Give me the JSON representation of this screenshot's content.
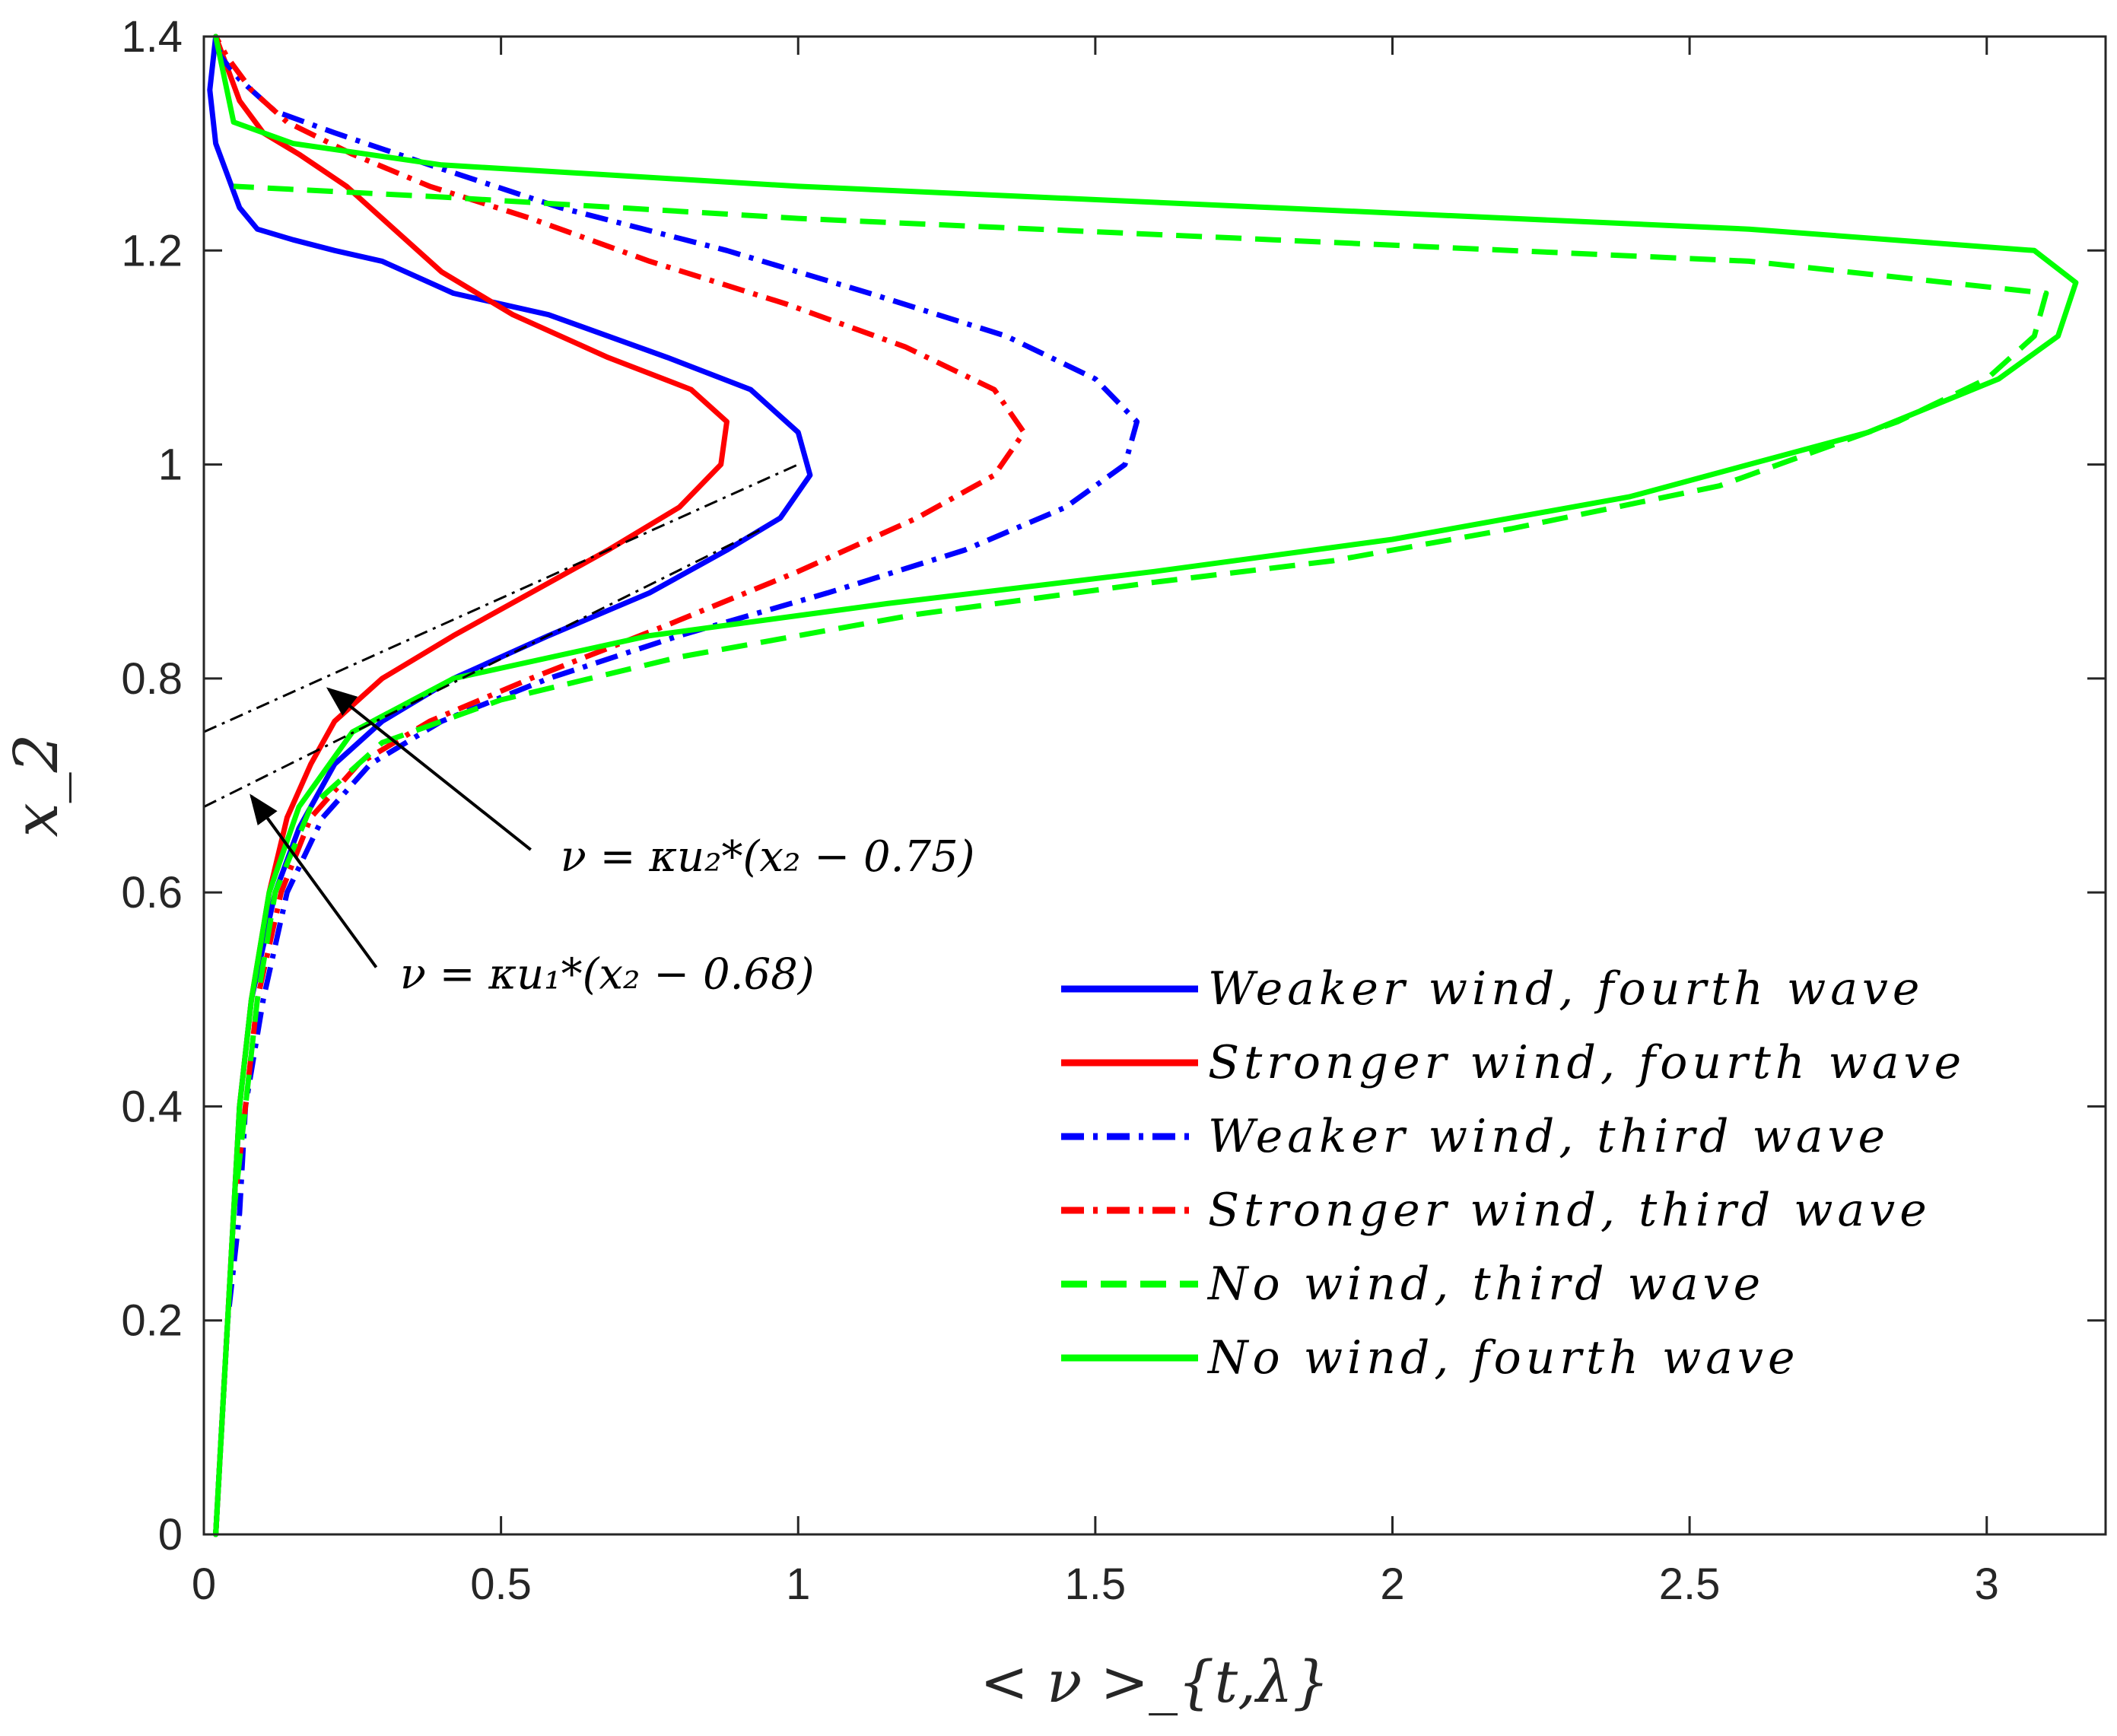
{
  "chart_data": {
    "type": "line",
    "title": "",
    "xlabel": "< ν >_{t,λ}",
    "ylabel": "x_2",
    "xlim": [
      0,
      3.2
    ],
    "ylim": [
      0,
      1.4
    ],
    "xticks": [
      0,
      0.5,
      1,
      1.5,
      2,
      2.5,
      3
    ],
    "xtick_labels": [
      "0",
      "0.5",
      "1",
      "1.5",
      "2",
      "2.5",
      "3"
    ],
    "yticks": [
      0,
      0.2,
      0.4,
      0.6,
      0.8,
      1,
      1.2,
      1.4
    ],
    "ytick_labels": [
      "0",
      "0.2",
      "0.4",
      "0.6",
      "0.8",
      "1",
      "1.2",
      "1.4"
    ],
    "grid": false,
    "legend_position": "bottom-right",
    "series": [
      {
        "name": "Weaker wind, fourth wave",
        "legend_text": "Weaker wind, fourth wave",
        "color": "#0000ff",
        "dash": "solid",
        "points": [
          [
            0.02,
            0.0
          ],
          [
            0.03,
            0.1
          ],
          [
            0.04,
            0.2
          ],
          [
            0.05,
            0.3
          ],
          [
            0.06,
            0.4
          ],
          [
            0.08,
            0.5
          ],
          [
            0.12,
            0.6
          ],
          [
            0.16,
            0.66
          ],
          [
            0.22,
            0.72
          ],
          [
            0.3,
            0.76
          ],
          [
            0.42,
            0.8
          ],
          [
            0.58,
            0.84
          ],
          [
            0.75,
            0.88
          ],
          [
            0.88,
            0.92
          ],
          [
            0.97,
            0.95
          ],
          [
            1.02,
            0.99
          ],
          [
            1.0,
            1.03
          ],
          [
            0.92,
            1.07
          ],
          [
            0.78,
            1.1
          ],
          [
            0.58,
            1.14
          ],
          [
            0.42,
            1.16
          ],
          [
            0.3,
            1.19
          ],
          [
            0.22,
            1.2
          ],
          [
            0.15,
            1.21
          ],
          [
            0.09,
            1.22
          ],
          [
            0.06,
            1.24
          ],
          [
            0.04,
            1.27
          ],
          [
            0.02,
            1.3
          ],
          [
            0.01,
            1.35
          ],
          [
            0.02,
            1.4
          ]
        ]
      },
      {
        "name": "Stronger wind, fourth wave",
        "legend_text": "Stronger wind, fourth wave",
        "color": "#ff0000",
        "dash": "solid",
        "points": [
          [
            0.02,
            0.0
          ],
          [
            0.03,
            0.1
          ],
          [
            0.04,
            0.2
          ],
          [
            0.05,
            0.3
          ],
          [
            0.06,
            0.4
          ],
          [
            0.08,
            0.5
          ],
          [
            0.11,
            0.6
          ],
          [
            0.14,
            0.67
          ],
          [
            0.18,
            0.72
          ],
          [
            0.22,
            0.76
          ],
          [
            0.3,
            0.8
          ],
          [
            0.42,
            0.84
          ],
          [
            0.55,
            0.88
          ],
          [
            0.68,
            0.92
          ],
          [
            0.8,
            0.96
          ],
          [
            0.87,
            1.0
          ],
          [
            0.88,
            1.04
          ],
          [
            0.82,
            1.07
          ],
          [
            0.68,
            1.1
          ],
          [
            0.52,
            1.14
          ],
          [
            0.4,
            1.18
          ],
          [
            0.32,
            1.22
          ],
          [
            0.24,
            1.26
          ],
          [
            0.16,
            1.29
          ],
          [
            0.1,
            1.31
          ],
          [
            0.06,
            1.34
          ],
          [
            0.04,
            1.37
          ],
          [
            0.02,
            1.4
          ]
        ]
      },
      {
        "name": "Weaker wind, third wave",
        "legend_text": "Weaker wind, third wave",
        "color": "#0000ff",
        "dash": "dashdot",
        "points": [
          [
            0.02,
            0.0
          ],
          [
            0.03,
            0.1
          ],
          [
            0.04,
            0.2
          ],
          [
            0.06,
            0.3
          ],
          [
            0.07,
            0.4
          ],
          [
            0.1,
            0.5
          ],
          [
            0.14,
            0.6
          ],
          [
            0.2,
            0.67
          ],
          [
            0.28,
            0.72
          ],
          [
            0.4,
            0.76
          ],
          [
            0.58,
            0.8
          ],
          [
            0.8,
            0.84
          ],
          [
            1.05,
            0.88
          ],
          [
            1.28,
            0.92
          ],
          [
            1.45,
            0.96
          ],
          [
            1.55,
            1.0
          ],
          [
            1.57,
            1.04
          ],
          [
            1.5,
            1.08
          ],
          [
            1.35,
            1.12
          ],
          [
            1.12,
            1.16
          ],
          [
            0.88,
            1.2
          ],
          [
            0.6,
            1.24
          ],
          [
            0.38,
            1.28
          ],
          [
            0.22,
            1.31
          ],
          [
            0.12,
            1.33
          ],
          [
            0.06,
            1.36
          ],
          [
            0.03,
            1.38
          ],
          [
            0.02,
            1.4
          ]
        ]
      },
      {
        "name": "Stronger wind, third wave",
        "legend_text": "Stronger wind, third wave",
        "color": "#ff0000",
        "dash": "dashdot",
        "points": [
          [
            0.02,
            0.0
          ],
          [
            0.03,
            0.1
          ],
          [
            0.04,
            0.2
          ],
          [
            0.05,
            0.3
          ],
          [
            0.07,
            0.4
          ],
          [
            0.09,
            0.5
          ],
          [
            0.13,
            0.6
          ],
          [
            0.18,
            0.67
          ],
          [
            0.26,
            0.72
          ],
          [
            0.38,
            0.76
          ],
          [
            0.55,
            0.8
          ],
          [
            0.78,
            0.85
          ],
          [
            1.0,
            0.9
          ],
          [
            1.2,
            0.95
          ],
          [
            1.33,
            0.99
          ],
          [
            1.38,
            1.03
          ],
          [
            1.33,
            1.07
          ],
          [
            1.18,
            1.11
          ],
          [
            0.98,
            1.15
          ],
          [
            0.75,
            1.19
          ],
          [
            0.55,
            1.23
          ],
          [
            0.38,
            1.26
          ],
          [
            0.25,
            1.29
          ],
          [
            0.14,
            1.32
          ],
          [
            0.08,
            1.35
          ],
          [
            0.04,
            1.38
          ],
          [
            0.02,
            1.4
          ]
        ]
      },
      {
        "name": "No wind, third wave",
        "legend_text": "No wind, third wave",
        "color": "#00ff00",
        "dash": "dashed",
        "points": [
          [
            0.02,
            0.0
          ],
          [
            0.03,
            0.1
          ],
          [
            0.04,
            0.2
          ],
          [
            0.05,
            0.3
          ],
          [
            0.07,
            0.4
          ],
          [
            0.09,
            0.5
          ],
          [
            0.12,
            0.6
          ],
          [
            0.18,
            0.68
          ],
          [
            0.3,
            0.74
          ],
          [
            0.5,
            0.78
          ],
          [
            0.8,
            0.82
          ],
          [
            1.2,
            0.86
          ],
          [
            1.6,
            0.89
          ],
          [
            1.9,
            0.91
          ],
          [
            2.2,
            0.94
          ],
          [
            2.55,
            0.98
          ],
          [
            2.85,
            1.04
          ],
          [
            3.0,
            1.08
          ],
          [
            3.08,
            1.12
          ],
          [
            3.1,
            1.16
          ],
          [
            2.6,
            1.19
          ],
          [
            1.8,
            1.21
          ],
          [
            1.0,
            1.23
          ],
          [
            0.4,
            1.25
          ],
          [
            0.05,
            1.26
          ]
        ]
      },
      {
        "name": "No wind, fourth wave",
        "legend_text": "No wind, fourth wave",
        "color": "#00ff00",
        "dash": "solid",
        "points": [
          [
            0.02,
            0.0
          ],
          [
            0.03,
            0.1
          ],
          [
            0.04,
            0.2
          ],
          [
            0.05,
            0.3
          ],
          [
            0.06,
            0.4
          ],
          [
            0.08,
            0.5
          ],
          [
            0.11,
            0.6
          ],
          [
            0.16,
            0.68
          ],
          [
            0.25,
            0.75
          ],
          [
            0.42,
            0.8
          ],
          [
            0.75,
            0.84
          ],
          [
            1.15,
            0.87
          ],
          [
            1.6,
            0.9
          ],
          [
            2.0,
            0.93
          ],
          [
            2.4,
            0.97
          ],
          [
            2.8,
            1.03
          ],
          [
            3.02,
            1.08
          ],
          [
            3.12,
            1.12
          ],
          [
            3.15,
            1.17
          ],
          [
            3.08,
            1.2
          ],
          [
            2.6,
            1.22
          ],
          [
            1.8,
            1.24
          ],
          [
            1.0,
            1.26
          ],
          [
            0.4,
            1.28
          ],
          [
            0.15,
            1.3
          ],
          [
            0.05,
            1.32
          ],
          [
            0.02,
            1.4
          ]
        ]
      }
    ],
    "fit_lines": [
      {
        "name": "fit-line-u2",
        "x_range": [
          0.0,
          1.0
        ],
        "y_range": [
          0.75,
          1.0
        ]
      },
      {
        "name": "fit-line-u1",
        "x_range": [
          0.0,
          0.94
        ],
        "y_range": [
          0.68,
          0.94
        ]
      }
    ],
    "annotations": [
      {
        "name": "annotation-u2",
        "text": "ν = κu₂*(x₂ − 0.75)",
        "text_at": [
          0.6,
          0.62
        ],
        "arrow_from": [
          0.55,
          0.64
        ],
        "arrow_to": [
          0.21,
          0.79
        ]
      },
      {
        "name": "annotation-u1",
        "text": "ν = κu₁*(x₂ − 0.68)",
        "text_at": [
          0.33,
          0.51
        ],
        "arrow_from": [
          0.29,
          0.53
        ],
        "arrow_to": [
          0.08,
          0.69
        ]
      }
    ]
  }
}
